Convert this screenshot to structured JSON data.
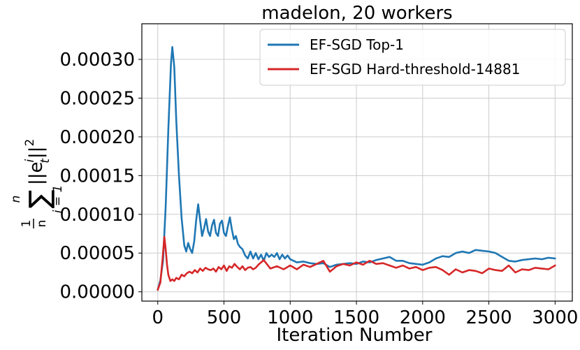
{
  "chart_data": {
    "type": "line",
    "title": "madelon, 20 workers",
    "xlabel": "Iteration Number",
    "ylabel_parts": {
      "frac_num": "1",
      "frac_den": "n",
      "sum_top": "n",
      "sum": "∑",
      "sum_bottom": "i = 1",
      "term": "||e",
      "term_sub": "t",
      "term_sup": "i",
      "term_end": "||",
      "term_end_sup": "2"
    },
    "xlim": [
      -120,
      3130
    ],
    "ylim": [
      -1.2e-05,
      0.000346
    ],
    "x_ticks": [
      0,
      500,
      1000,
      1500,
      2000,
      2500,
      3000
    ],
    "x_tick_labels": [
      "0",
      "500",
      "1000",
      "1500",
      "2000",
      "2500",
      "3000"
    ],
    "y_ticks": [
      0.0,
      5e-05,
      0.0001,
      0.00015,
      0.0002,
      0.00025,
      0.0003
    ],
    "y_tick_labels": [
      "0.00000",
      "0.00005",
      "0.00010",
      "0.00015",
      "0.00020",
      "0.00025",
      "0.00030"
    ],
    "grid": true,
    "legend_position": "top-right",
    "series": [
      {
        "name": "EF-SGD Top-1",
        "color": "#1f77b4",
        "x": [
          0,
          20,
          40,
          60,
          80,
          100,
          110,
          125,
          140,
          160,
          180,
          200,
          215,
          230,
          245,
          260,
          275,
          290,
          305,
          320,
          335,
          350,
          365,
          380,
          395,
          410,
          425,
          440,
          455,
          470,
          485,
          500,
          515,
          530,
          545,
          560,
          575,
          590,
          605,
          620,
          640,
          660,
          680,
          700,
          720,
          740,
          760,
          780,
          800,
          820,
          840,
          860,
          880,
          900,
          920,
          940,
          960,
          980,
          1000,
          1050,
          1100,
          1150,
          1200,
          1250,
          1300,
          1350,
          1400,
          1450,
          1500,
          1550,
          1600,
          1650,
          1700,
          1750,
          1800,
          1850,
          1900,
          1950,
          2000,
          2050,
          2100,
          2150,
          2200,
          2250,
          2300,
          2350,
          2400,
          2450,
          2500,
          2550,
          2600,
          2650,
          2700,
          2750,
          2800,
          2850,
          2900,
          2950,
          3000
        ],
        "y": [
          2.5e-06,
          1.5e-05,
          4e-05,
          0.00011,
          0.00021,
          0.000295,
          0.000316,
          0.00029,
          0.00022,
          0.00015,
          9.5e-05,
          6e-05,
          5.2e-05,
          6.3e-05,
          5.5e-05,
          5e-05,
          6.5e-05,
          9.2e-05,
          0.000113,
          9.2e-05,
          7.2e-05,
          8.2e-05,
          9.4e-05,
          7.8e-05,
          7.2e-05,
          8.6e-05,
          9.3e-05,
          7.6e-05,
          7.2e-05,
          8.8e-05,
          9.2e-05,
          7.6e-05,
          7.2e-05,
          8.5e-05,
          9.6e-05,
          8e-05,
          6.8e-05,
          7.2e-05,
          6.2e-05,
          5.8e-05,
          5.5e-05,
          4.7e-05,
          4.3e-05,
          5.2e-05,
          4.3e-05,
          5e-05,
          4.2e-05,
          4.8e-05,
          4e-05,
          5e-05,
          4.5e-05,
          4.8e-05,
          4.5e-05,
          5e-05,
          4.2e-05,
          4.8e-05,
          4.3e-05,
          4.7e-05,
          4.2e-05,
          3.8e-05,
          3.9e-05,
          3.7e-05,
          3.6e-05,
          3.7e-05,
          3.2e-05,
          3.5e-05,
          3.6e-05,
          3.7e-05,
          3.6e-05,
          3.9e-05,
          3.8e-05,
          4.1e-05,
          4.3e-05,
          4.5e-05,
          4e-05,
          4e-05,
          3.7e-05,
          3.6e-05,
          3.5e-05,
          3.8e-05,
          4.3e-05,
          4.6e-05,
          4.5e-05,
          5e-05,
          5.2e-05,
          5e-05,
          5.4e-05,
          5.3e-05,
          5.2e-05,
          5e-05,
          4.5e-05,
          4e-05,
          3.9e-05,
          4.1e-05,
          4.2e-05,
          4.3e-05,
          4.2e-05,
          4.4e-05,
          4.3e-05
        ]
      },
      {
        "name": "EF-SGD Hard-threshold-14881",
        "color": "#d62728",
        "x": [
          0,
          20,
          35,
          50,
          60,
          70,
          80,
          95,
          110,
          125,
          140,
          160,
          180,
          200,
          220,
          240,
          260,
          280,
          300,
          320,
          340,
          360,
          380,
          400,
          420,
          440,
          460,
          480,
          500,
          520,
          540,
          560,
          580,
          600,
          620,
          640,
          660,
          680,
          700,
          720,
          740,
          760,
          780,
          800,
          850,
          900,
          950,
          1000,
          1050,
          1100,
          1150,
          1200,
          1250,
          1300,
          1350,
          1400,
          1450,
          1500,
          1550,
          1600,
          1650,
          1700,
          1750,
          1800,
          1850,
          1900,
          1950,
          2000,
          2050,
          2100,
          2150,
          2200,
          2250,
          2300,
          2350,
          2400,
          2450,
          2500,
          2550,
          2600,
          2650,
          2700,
          2750,
          2800,
          2850,
          2900,
          2950,
          3000
        ],
        "y": [
          2.5e-06,
          1.2e-05,
          4e-05,
          7.1e-05,
          5.5e-05,
          3.5e-05,
          2.2e-05,
          1.4e-05,
          1.6e-05,
          1.4e-05,
          1.8e-05,
          1.6e-05,
          2.2e-05,
          2e-05,
          2.4e-05,
          2.6e-05,
          2.4e-05,
          2.8e-05,
          2.5e-05,
          3e-05,
          2.7e-05,
          3.1e-05,
          2.9e-05,
          2.8e-05,
          3e-05,
          2.6e-05,
          3.2e-05,
          2.9e-05,
          3.4e-05,
          2.7e-05,
          3.3e-05,
          3.1e-05,
          3.6e-05,
          3.2e-05,
          2.9e-05,
          3.3e-05,
          2.8e-05,
          3.1e-05,
          3.2e-05,
          2.9e-05,
          3.1e-05,
          3.5e-05,
          3.8e-05,
          4.1e-05,
          3e-05,
          3.3e-05,
          2.9e-05,
          3.4e-05,
          2.9e-05,
          3.5e-05,
          3.2e-05,
          3.6e-05,
          4e-05,
          2.6e-05,
          3.3e-05,
          3.6e-05,
          3.4e-05,
          3.8e-05,
          3.5e-05,
          4e-05,
          3.6e-05,
          3.7e-05,
          3.4e-05,
          3.1e-05,
          3.4e-05,
          3e-05,
          3.2e-05,
          2.8e-05,
          3.1e-05,
          3.2e-05,
          2.8e-05,
          2.2e-05,
          2.9e-05,
          2.5e-05,
          2.8e-05,
          2.7e-05,
          2.4e-05,
          3e-05,
          2.8e-05,
          2.7e-05,
          3.4e-05,
          2.5e-05,
          2.9e-05,
          2.8e-05,
          3.1e-05,
          3e-05,
          2.9e-05,
          3.4e-05
        ]
      }
    ]
  }
}
